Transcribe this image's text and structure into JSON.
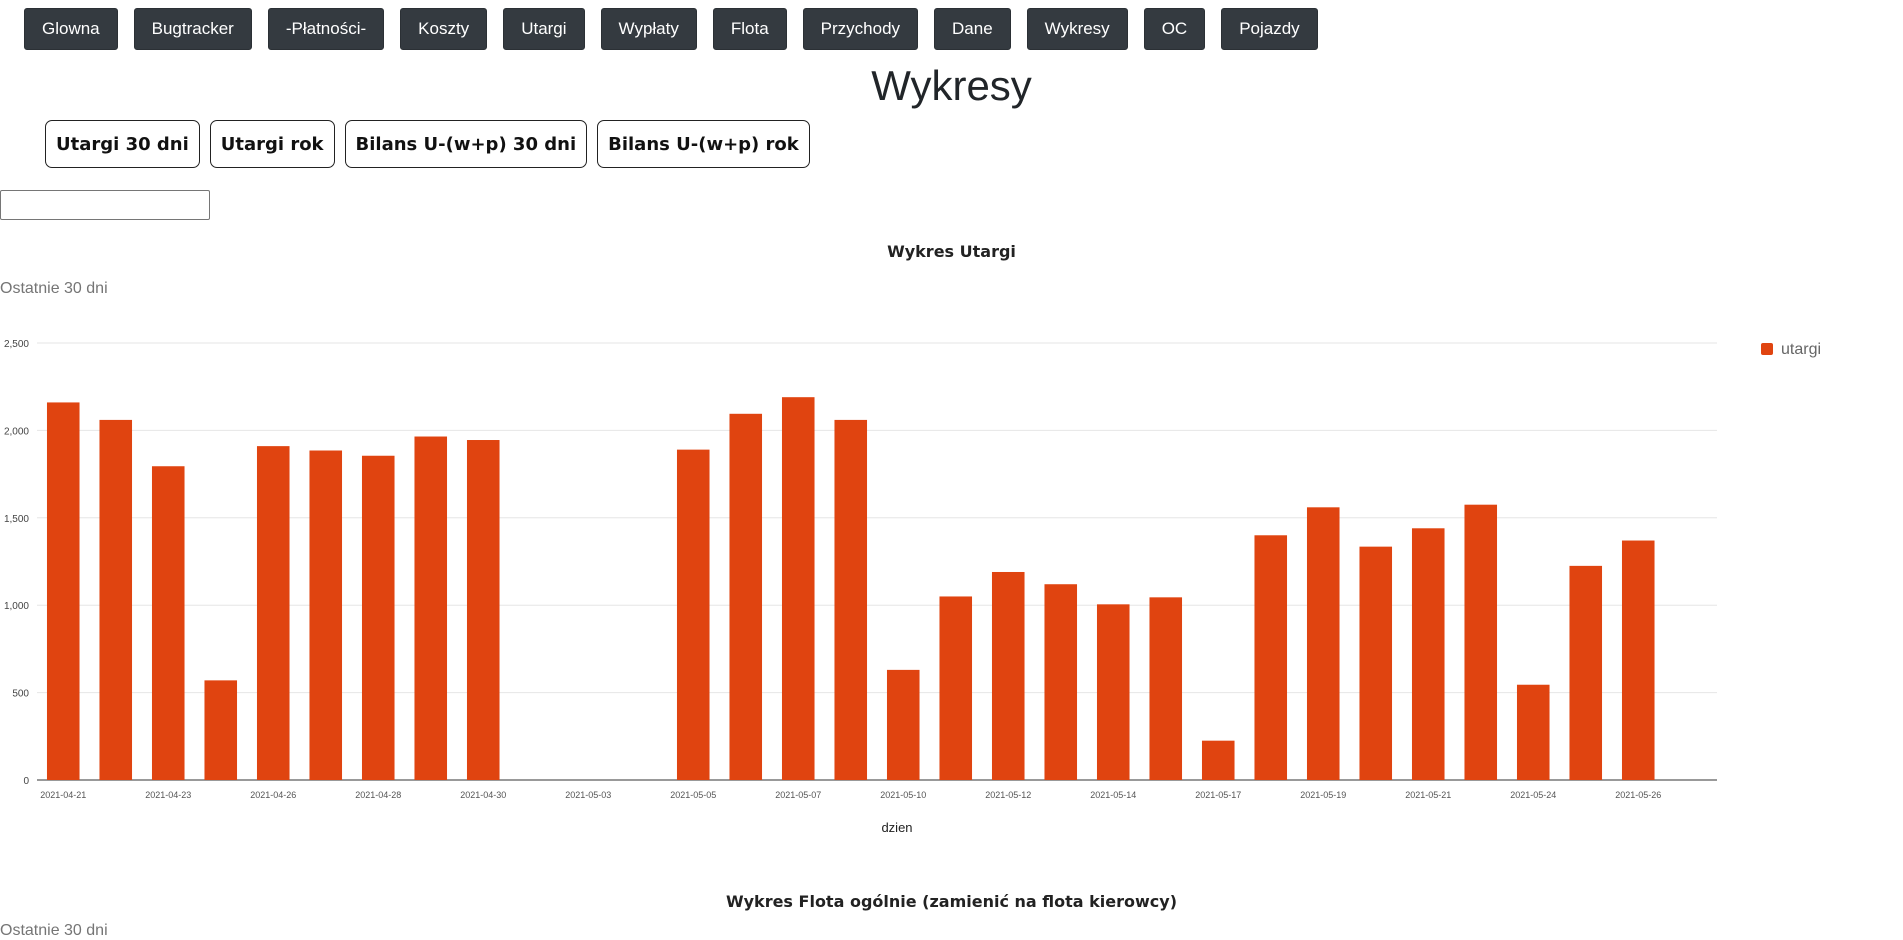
{
  "nav": {
    "items": [
      "Glowna",
      "Bugtracker",
      "-Płatności-",
      "Koszty",
      "Utargi",
      "Wypłaty",
      "Flota",
      "Przychody",
      "Dane",
      "Wykresy",
      "OC",
      "Pojazdy"
    ]
  },
  "page_title": "Wykresy",
  "chart_tabs": [
    "Utargi 30 dni",
    "Utargi rok",
    "Bilans U-(w+p) 30 dni",
    "Bilans U-(w+p) rok"
  ],
  "date_input": {
    "value": ""
  },
  "chart1": {
    "title": "Wykres Utargi",
    "subtitle": "Ostatnie 30 dni"
  },
  "chart2": {
    "title": "Wykres Flota ogólnie (zamienić na flota kierowcy)",
    "subtitle": "Ostatnie 30 dni"
  },
  "chart_data": {
    "type": "bar",
    "xlabel": "dzien",
    "ylabel": "",
    "ylim": [
      0,
      2500
    ],
    "y_ticks": [
      0,
      500,
      1000,
      1500,
      2000,
      2500
    ],
    "y_tick_labels": [
      "0",
      "500",
      "1,000",
      "1,500",
      "2,000",
      "2,500"
    ],
    "grid": true,
    "legend_position": "top-right",
    "bar_color": "#e04410",
    "x_tick_labels": [
      "2021-04-21",
      "2021-04-23",
      "2021-04-26",
      "2021-04-28",
      "2021-04-30",
      "2021-05-03",
      "2021-05-05",
      "2021-05-07",
      "2021-05-10",
      "2021-05-12",
      "2021-05-14",
      "2021-05-17",
      "2021-05-19",
      "2021-05-21",
      "2021-05-24",
      "2021-05-26"
    ],
    "series": [
      {
        "name": "utargi",
        "values": [
          2160,
          2060,
          1795,
          570,
          1910,
          1885,
          1855,
          1965,
          1945,
          null,
          null,
          null,
          1890,
          2095,
          2190,
          2060,
          630,
          1050,
          1190,
          1120,
          1005,
          1045,
          225,
          1400,
          1560,
          1335,
          1440,
          1575,
          545,
          1225,
          1370,
          null
        ]
      }
    ]
  }
}
